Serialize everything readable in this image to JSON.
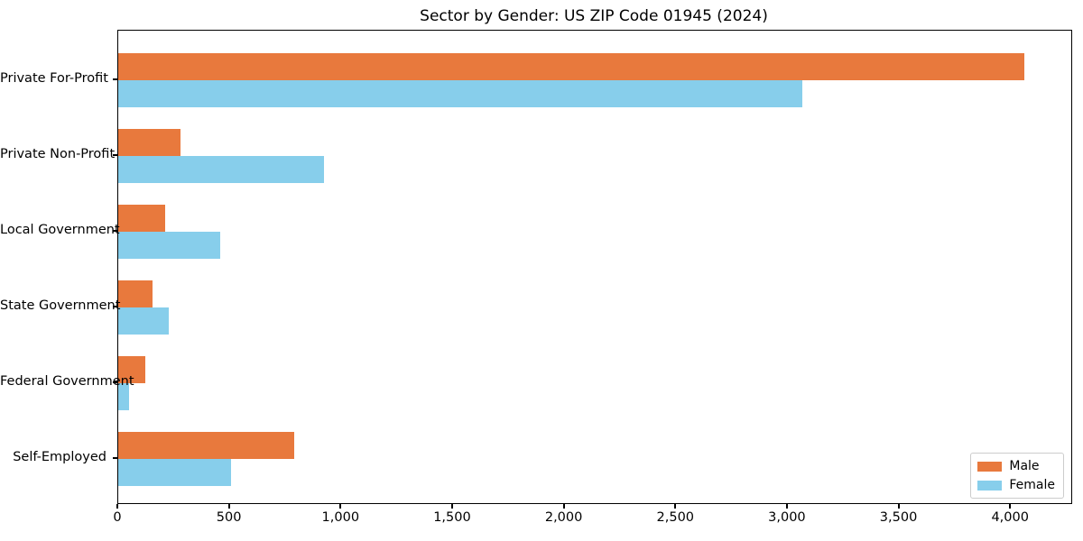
{
  "chart_data": {
    "type": "bar",
    "orientation": "horizontal",
    "title": "Sector by Gender: US ZIP Code 01945 (2024)",
    "categories": [
      "Private For-Profit",
      "Private Non-Profit",
      "Local Government",
      "State Government",
      "Federal Government",
      "Self-Employed"
    ],
    "series": [
      {
        "name": "Male",
        "color": "#e8793d",
        "values": [
          4060,
          280,
          210,
          155,
          120,
          790
        ]
      },
      {
        "name": "Female",
        "color": "#87ceeb",
        "values": [
          3065,
          920,
          455,
          225,
          50,
          505
        ]
      }
    ],
    "xlim": [
      0,
      4270
    ],
    "xticks": [
      0,
      500,
      1000,
      1500,
      2000,
      2500,
      3000,
      3500,
      4000
    ],
    "xtick_labels": [
      "0",
      "500",
      "1,000",
      "1,500",
      "2,000",
      "2,500",
      "3,000",
      "3,500",
      "4,000"
    ],
    "xlabel": "",
    "ylabel": "",
    "grid": false,
    "legend_position": "lower right",
    "background_color": "#ffffff",
    "spine_color": "#000000"
  }
}
